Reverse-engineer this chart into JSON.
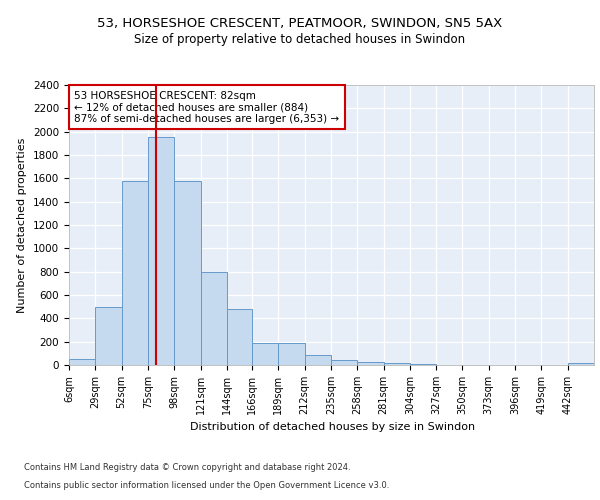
{
  "title1": "53, HORSESHOE CRESCENT, PEATMOOR, SWINDON, SN5 5AX",
  "title2": "Size of property relative to detached houses in Swindon",
  "xlabel": "Distribution of detached houses by size in Swindon",
  "ylabel": "Number of detached properties",
  "footer1": "Contains HM Land Registry data © Crown copyright and database right 2024.",
  "footer2": "Contains public sector information licensed under the Open Government Licence v3.0.",
  "bin_edges": [
    6,
    29,
    52,
    75,
    98,
    121,
    144,
    166,
    189,
    212,
    235,
    258,
    281,
    304,
    327,
    350,
    373,
    396,
    419,
    442,
    465
  ],
  "bar_heights": [
    50,
    500,
    1580,
    1950,
    1580,
    800,
    480,
    190,
    190,
    90,
    40,
    30,
    20,
    5,
    3,
    2,
    2,
    2,
    2,
    20
  ],
  "bar_color": "#c5d9ef",
  "bar_edge_color": "#6699cc",
  "property_size": 82,
  "vline_color": "#cc0000",
  "annotation_text": "53 HORSESHOE CRESCENT: 82sqm\n← 12% of detached houses are smaller (884)\n87% of semi-detached houses are larger (6,353) →",
  "annotation_box_color": "#cc0000",
  "ylim": [
    0,
    2400
  ],
  "yticks": [
    0,
    200,
    400,
    600,
    800,
    1000,
    1200,
    1400,
    1600,
    1800,
    2000,
    2200,
    2400
  ],
  "bg_color": "#e8eef7",
  "axes_bg_color": "#e8eef7"
}
